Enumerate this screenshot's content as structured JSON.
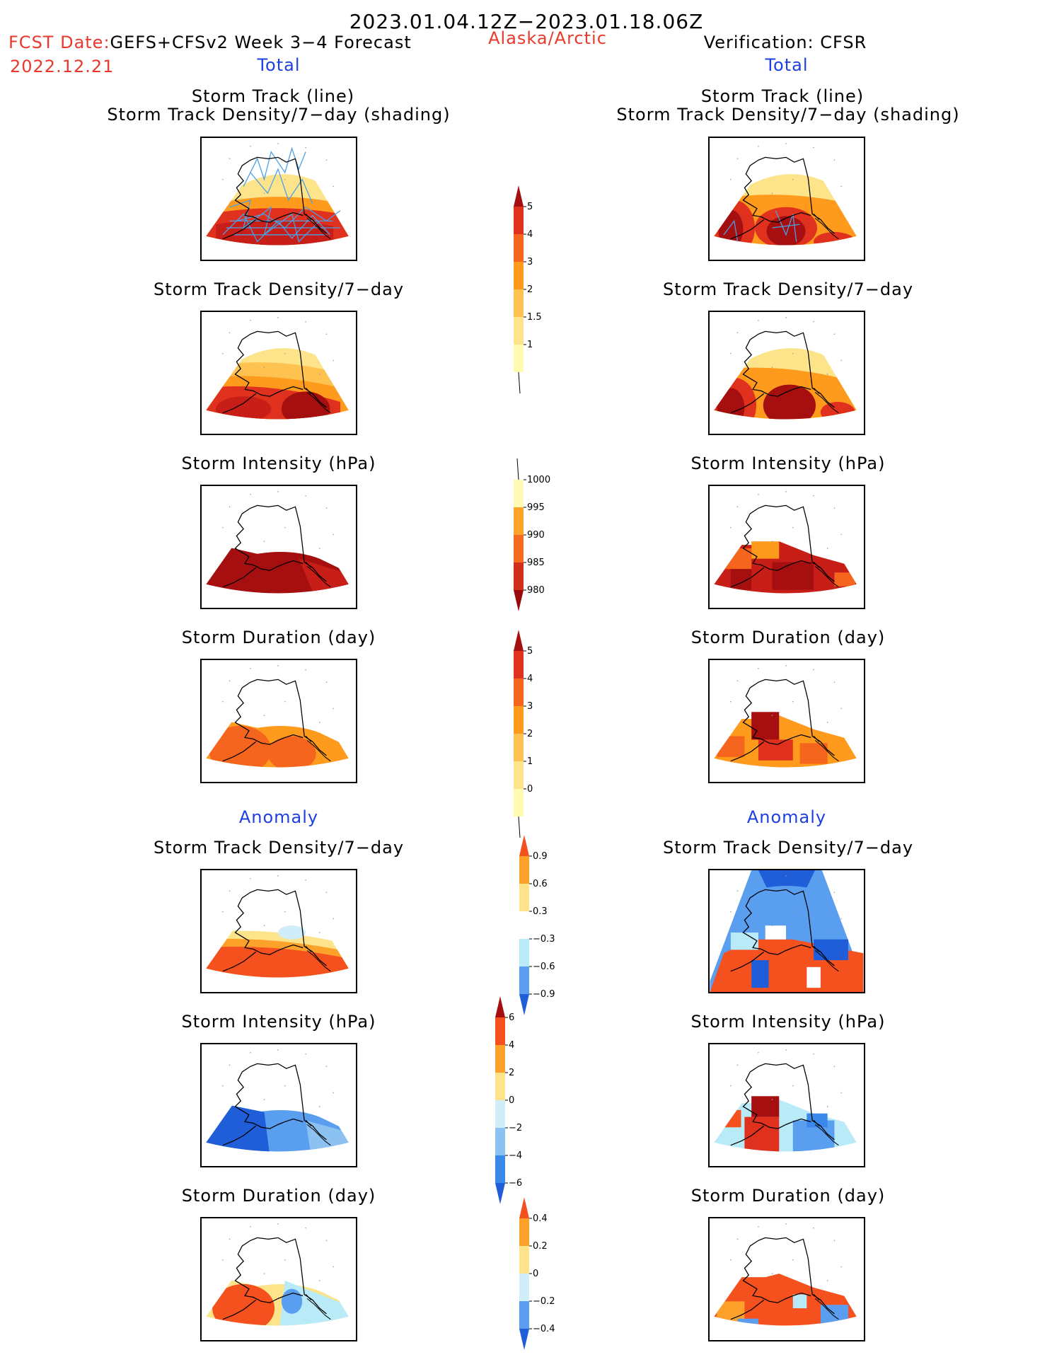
{
  "header": {
    "date_range": "2023.01.04.12Z−2023.01.18.06Z",
    "fcst_prefix": "FCST Date:",
    "fcst_model": "GEFS+CFSv2 Week 3−4 Forecast",
    "fcst_date": "2022.12.21",
    "region": "Alaska/Arctic",
    "verification": "Verification: CFSR"
  },
  "colors": {
    "header_red": "#e8392c",
    "section_blue": "#1f3fe0"
  },
  "sections": {
    "total": "Total",
    "anomaly": "Anomaly"
  },
  "titles": {
    "track_line": "Storm Track (line)",
    "track_shading": "Storm Track Density/7−day (shading)",
    "density": "Storm Track Density/7−day",
    "intensity": "Storm Intensity (hPa)",
    "duration": "Storm Duration (day)"
  },
  "panels": [
    {
      "id": "fcst-total-track",
      "column": "forecast",
      "group": "total",
      "variable": "storm track density with tracks",
      "pattern": "dark red band across North Pacific with many blue storm track lines"
    },
    {
      "id": "obs-total-track",
      "column": "verification",
      "group": "total",
      "variable": "storm track density with tracks",
      "pattern": "dark red maxima over Bering Sea and Gulf of Alaska with few blue track lines"
    },
    {
      "id": "fcst-total-density",
      "column": "forecast",
      "group": "total",
      "variable": "storm track density",
      "pattern": "dark red over North Pacific, orange to yellow northward"
    },
    {
      "id": "obs-total-density",
      "column": "verification",
      "group": "total",
      "variable": "storm track density",
      "pattern": "dark red maxima west and south of Alaska"
    },
    {
      "id": "fcst-total-intensity",
      "column": "forecast",
      "group": "total",
      "variable": "storm intensity",
      "pattern": "uniform dark red below 985 hPa"
    },
    {
      "id": "obs-total-intensity",
      "column": "verification",
      "group": "total",
      "variable": "storm intensity",
      "pattern": "blocky dark red and orange"
    },
    {
      "id": "fcst-total-duration",
      "column": "forecast",
      "group": "total",
      "variable": "storm duration",
      "pattern": "orange, 2-4 days"
    },
    {
      "id": "obs-total-duration",
      "column": "verification",
      "group": "total",
      "variable": "storm duration",
      "pattern": "blocky orange with dark red near Bering Strait"
    },
    {
      "id": "fcst-anom-density",
      "column": "forecast",
      "group": "anomaly",
      "variable": "storm track density anomaly",
      "pattern": "positive red over North Pacific, slight negative over interior Alaska"
    },
    {
      "id": "obs-anom-density",
      "column": "verification",
      "group": "anomaly",
      "variable": "storm track density anomaly",
      "pattern": "negative blue north, mixed red and blue south"
    },
    {
      "id": "fcst-anom-intensity",
      "column": "forecast",
      "group": "anomaly",
      "variable": "storm intensity anomaly",
      "pattern": "negative blue everywhere"
    },
    {
      "id": "obs-anom-intensity",
      "column": "verification",
      "group": "anomaly",
      "variable": "storm intensity anomaly",
      "pattern": "positive red west, negative blue east"
    },
    {
      "id": "fcst-anom-duration",
      "column": "forecast",
      "group": "anomaly",
      "variable": "storm duration anomaly",
      "pattern": "positive red west, negative blue east"
    },
    {
      "id": "obs-anom-duration",
      "column": "verification",
      "group": "anomaly",
      "variable": "storm duration anomaly",
      "pattern": "mostly positive orange-red with blue patches"
    }
  ],
  "colorbars": [
    {
      "id": "cbar-density-total",
      "labels": [
        "1",
        "1.5",
        "2",
        "3",
        "4",
        "5"
      ],
      "colors": [
        "#fffbb0",
        "#fde48a",
        "#fec250",
        "#fe9a1c",
        "#f6651e",
        "#e0301e",
        "#a50f0f"
      ],
      "low_extend": "line",
      "high_extend": "triangle"
    },
    {
      "id": "cbar-intensity-total",
      "labels": [
        "980",
        "985",
        "990",
        "995",
        "1000"
      ],
      "colors": [
        "#9b0a0a",
        "#d0301b",
        "#f36c22",
        "#fda327",
        "#fffbb6"
      ],
      "low_extend": "triangle",
      "high_extend": "line"
    },
    {
      "id": "cbar-duration-total",
      "labels": [
        "0",
        "1",
        "2",
        "3",
        "4",
        "5"
      ],
      "colors": [
        "#fffbb0",
        "#fde48a",
        "#fec250",
        "#fe9a1c",
        "#f6651e",
        "#e0301e",
        "#a50f0f"
      ],
      "low_extend": "line",
      "high_extend": "triangle"
    },
    {
      "id": "cbar-density-anom",
      "labels": [
        "−0.9",
        "−0.6",
        "−0.3",
        "0.3",
        "0.6",
        "0.9"
      ],
      "colors": [
        "#1f5ed8",
        "#5a9ef0",
        "#b8eaf7",
        "#ffffff",
        "#fde48a",
        "#fca12a",
        "#f4511e"
      ],
      "low_extend": "triangle",
      "high_extend": "triangle"
    },
    {
      "id": "cbar-intensity-anom",
      "labels": [
        "−6",
        "−4",
        "−2",
        "0",
        "2",
        "4",
        "6"
      ],
      "colors": [
        "#1f5ed8",
        "#3a88ea",
        "#8cc2f2",
        "#cfeefa",
        "#fde48a",
        "#fca12a",
        "#f4511e",
        "#a50f0f"
      ],
      "low_extend": "triangle",
      "high_extend": "triangle"
    },
    {
      "id": "cbar-duration-anom",
      "labels": [
        "−0.4",
        "−0.2",
        "0",
        "0.2",
        "0.4"
      ],
      "colors": [
        "#1f5ed8",
        "#5a9ef0",
        "#cfeefa",
        "#fde48a",
        "#fca12a",
        "#f4511e"
      ],
      "low_extend": "triangle",
      "high_extend": "triangle"
    }
  ]
}
